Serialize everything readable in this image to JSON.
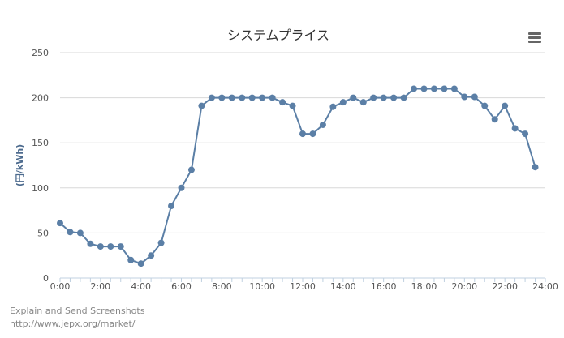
{
  "menu": {
    "icon": "hamburger-menu-icon"
  },
  "watermark": {
    "line1": "Explain and Send Screenshots",
    "line2": "http://www.jepx.org/market/"
  },
  "chart_data": {
    "type": "line",
    "title": "システムプライス",
    "xlabel": "",
    "ylabel": "(円/kWh)",
    "ylim": [
      0,
      250
    ],
    "yticks": [
      "0",
      "50",
      "100",
      "150",
      "200",
      "250"
    ],
    "xticks": [
      "0:00",
      "2:00",
      "4:00",
      "6:00",
      "8:00",
      "10:00",
      "12:00",
      "14:00",
      "16:00",
      "18:00",
      "20:00",
      "22:00",
      "24:00"
    ],
    "grid": true,
    "line_color": "#5b7fa6",
    "series": [
      {
        "values": [
          61,
          51,
          50,
          38,
          35,
          35,
          35,
          20,
          16,
          25,
          39,
          80,
          100,
          120,
          191,
          200,
          200,
          200,
          200,
          200,
          200,
          200,
          195,
          191,
          160,
          160,
          170,
          190,
          195,
          200,
          195,
          200,
          200,
          200,
          200,
          210,
          210,
          210,
          210,
          210,
          201,
          201,
          191,
          176,
          191,
          166,
          160,
          123
        ]
      }
    ]
  }
}
